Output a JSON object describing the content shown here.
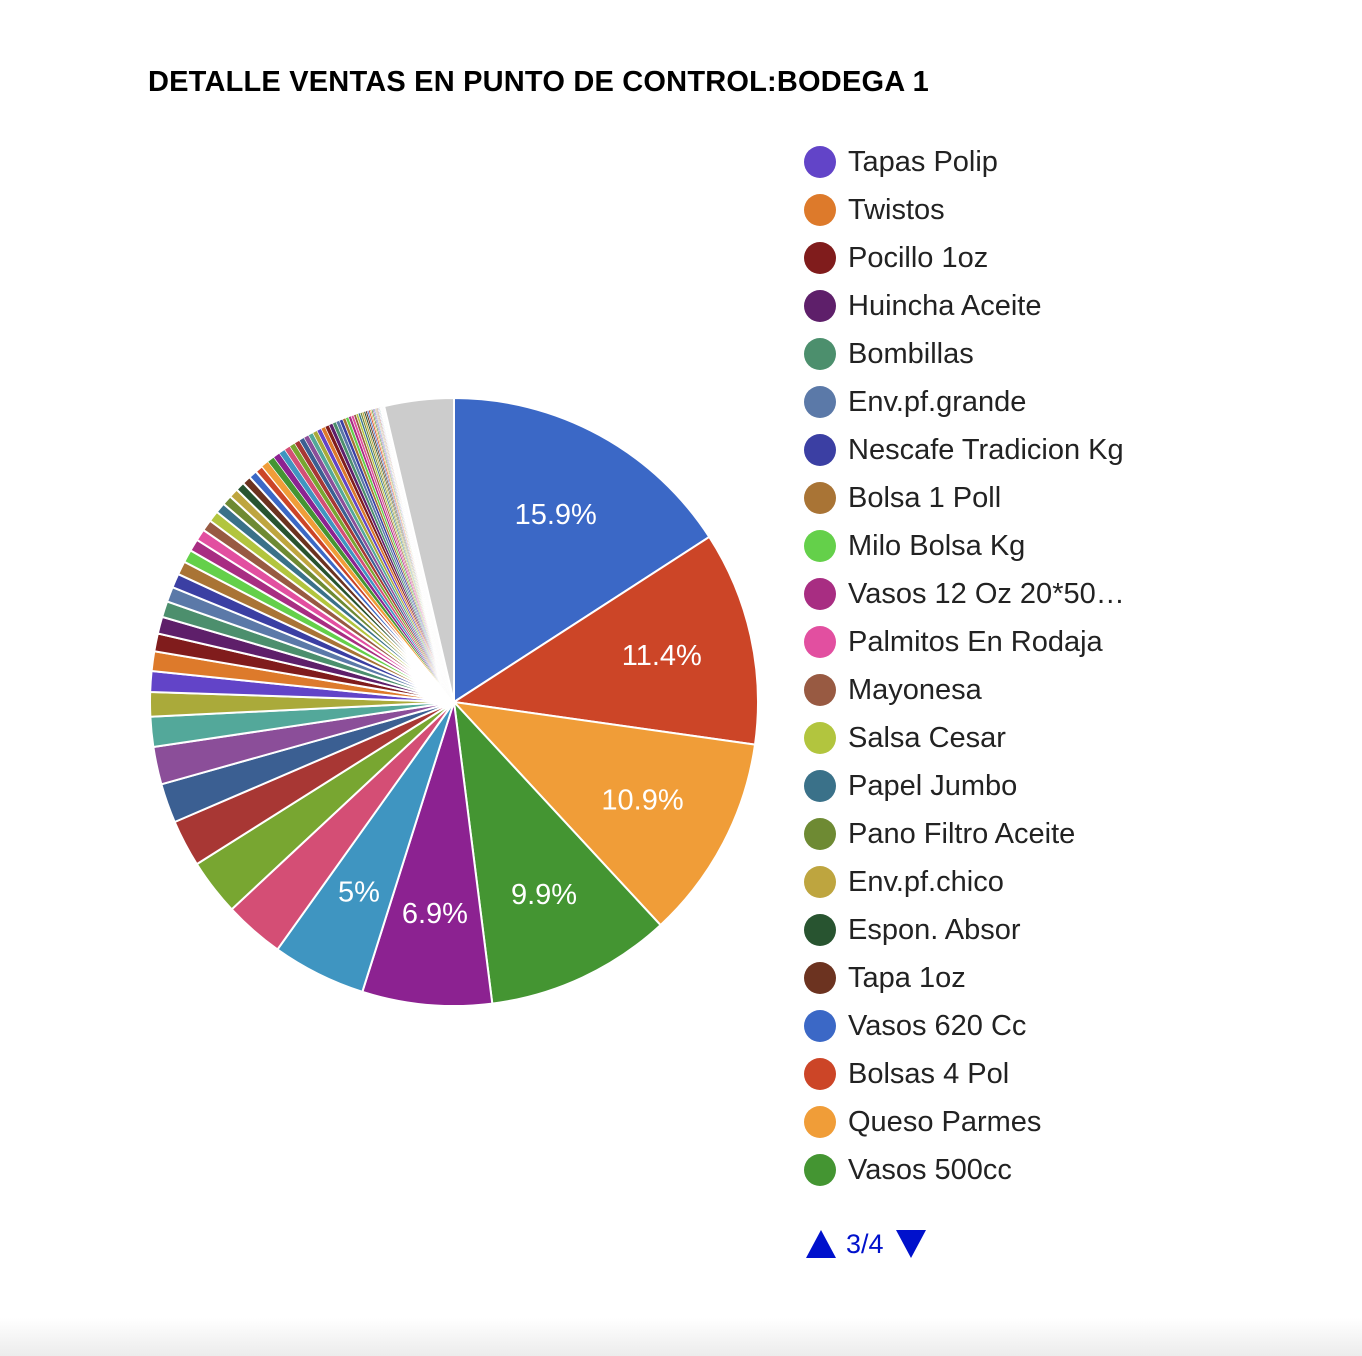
{
  "chart_data": {
    "type": "pie",
    "title": "DETALLE VENTAS EN PUNTO DE CONTROL:BODEGA 1",
    "legend_placement": "right",
    "slices": [
      {
        "name": "Vasos 620 Cc",
        "value": 15.9,
        "color": "#3b68c6",
        "label": "15.9%"
      },
      {
        "name": "Bolsas 4 Pol",
        "value": 11.4,
        "color": "#cc4527",
        "label": "11.4%"
      },
      {
        "name": "Queso Parmes",
        "value": 10.9,
        "color": "#f09d38",
        "label": "10.9%"
      },
      {
        "name": "Vasos 500cc",
        "value": 9.9,
        "color": "#449532",
        "label": "9.9%"
      },
      {
        "name": "",
        "value": 6.9,
        "color": "#8c2291",
        "label": "6.9%"
      },
      {
        "name": "",
        "value": 5.0,
        "color": "#3f95c1",
        "label": "5%"
      },
      {
        "name": "",
        "value": 3.2,
        "color": "#d44e75",
        "label": ""
      },
      {
        "name": "",
        "value": 3.0,
        "color": "#78a631",
        "label": ""
      },
      {
        "name": "",
        "value": 2.5,
        "color": "#a83734",
        "label": ""
      },
      {
        "name": "",
        "value": 2.1,
        "color": "#3b5f92",
        "label": ""
      },
      {
        "name": "",
        "value": 2.0,
        "color": "#8b4e99",
        "label": ""
      },
      {
        "name": "",
        "value": 1.6,
        "color": "#53a89a",
        "label": ""
      },
      {
        "name": "",
        "value": 1.3,
        "color": "#aaaa3a",
        "label": ""
      },
      {
        "name": "Tapas Polip",
        "value": 1.1,
        "color": "#6244c8",
        "label": ""
      },
      {
        "name": "Twistos",
        "value": 1.05,
        "color": "#dd7a2b",
        "label": ""
      },
      {
        "name": "Pocillo 1oz",
        "value": 0.95,
        "color": "#801c1c",
        "label": ""
      },
      {
        "name": "Huincha Aceite",
        "value": 0.9,
        "color": "#5e1f6a",
        "label": ""
      },
      {
        "name": "Bombillas",
        "value": 0.85,
        "color": "#4c8f6d",
        "label": ""
      },
      {
        "name": "Env.pf.grande",
        "value": 0.8,
        "color": "#5b79a8",
        "label": ""
      },
      {
        "name": "Nescafe Tradicion Kg",
        "value": 0.75,
        "color": "#3b3fa3",
        "label": ""
      },
      {
        "name": "Bolsa 1 Poll",
        "value": 0.72,
        "color": "#a97435",
        "label": ""
      },
      {
        "name": "Milo Bolsa Kg",
        "value": 0.68,
        "color": "#64d04a",
        "label": ""
      },
      {
        "name": "Vasos 12 Oz 20*50…",
        "value": 0.65,
        "color": "#a82d82",
        "label": ""
      },
      {
        "name": "Palmitos En Rodaja",
        "value": 0.62,
        "color": "#e24fa0",
        "label": ""
      },
      {
        "name": "Mayonesa",
        "value": 0.6,
        "color": "#985a42",
        "label": ""
      },
      {
        "name": "Salsa Cesar",
        "value": 0.58,
        "color": "#b2c53e",
        "label": ""
      },
      {
        "name": "Papel Jumbo",
        "value": 0.55,
        "color": "#3a7189",
        "label": ""
      },
      {
        "name": "Pano Filtro Aceite",
        "value": 0.52,
        "color": "#6e8a33",
        "label": ""
      },
      {
        "name": "Env.pf.chico",
        "value": 0.5,
        "color": "#bea53f",
        "label": ""
      },
      {
        "name": "Espon. Absor",
        "value": 0.48,
        "color": "#285430",
        "label": ""
      },
      {
        "name": "Tapa 1oz",
        "value": 0.46,
        "color": "#6c3320",
        "label": ""
      },
      {
        "name": "",
        "value": 0.44,
        "color": "#3b68c6",
        "label": ""
      },
      {
        "name": "",
        "value": 0.42,
        "color": "#cc4527",
        "label": ""
      },
      {
        "name": "",
        "value": 0.4,
        "color": "#f09d38",
        "label": ""
      },
      {
        "name": "",
        "value": 0.38,
        "color": "#449532",
        "label": ""
      },
      {
        "name": "",
        "value": 0.36,
        "color": "#8c2291",
        "label": ""
      },
      {
        "name": "",
        "value": 0.34,
        "color": "#3f95c1",
        "label": ""
      },
      {
        "name": "",
        "value": 0.32,
        "color": "#d44e75",
        "label": ""
      },
      {
        "name": "",
        "value": 0.3,
        "color": "#78a631",
        "label": ""
      },
      {
        "name": "",
        "value": 0.29,
        "color": "#a83734",
        "label": ""
      },
      {
        "name": "",
        "value": 0.28,
        "color": "#3b5f92",
        "label": ""
      },
      {
        "name": "",
        "value": 0.27,
        "color": "#8b4e99",
        "label": ""
      },
      {
        "name": "",
        "value": 0.26,
        "color": "#53a89a",
        "label": ""
      },
      {
        "name": "",
        "value": 0.25,
        "color": "#aaaa3a",
        "label": ""
      },
      {
        "name": "",
        "value": 0.24,
        "color": "#6244c8",
        "label": ""
      },
      {
        "name": "",
        "value": 0.23,
        "color": "#dd7a2b",
        "label": ""
      },
      {
        "name": "",
        "value": 0.22,
        "color": "#801c1c",
        "label": ""
      },
      {
        "name": "",
        "value": 0.21,
        "color": "#5e1f6a",
        "label": ""
      },
      {
        "name": "",
        "value": 0.2,
        "color": "#4c8f6d",
        "label": ""
      },
      {
        "name": "",
        "value": 0.19,
        "color": "#5b79a8",
        "label": ""
      },
      {
        "name": "",
        "value": 0.18,
        "color": "#3b3fa3",
        "label": ""
      },
      {
        "name": "",
        "value": 0.17,
        "color": "#a97435",
        "label": ""
      },
      {
        "name": "",
        "value": 0.16,
        "color": "#64d04a",
        "label": ""
      },
      {
        "name": "",
        "value": 0.15,
        "color": "#a82d82",
        "label": ""
      },
      {
        "name": "",
        "value": 0.14,
        "color": "#e24fa0",
        "label": ""
      },
      {
        "name": "",
        "value": 0.13,
        "color": "#985a42",
        "label": ""
      },
      {
        "name": "",
        "value": 0.12,
        "color": "#b2c53e",
        "label": ""
      },
      {
        "name": "",
        "value": 0.11,
        "color": "#3a7189",
        "label": ""
      },
      {
        "name": "",
        "value": 0.1,
        "color": "#6e8a33",
        "label": ""
      },
      {
        "name": "",
        "value": 0.1,
        "color": "#bea53f",
        "label": ""
      },
      {
        "name": "",
        "value": 0.09,
        "color": "#285430",
        "label": ""
      },
      {
        "name": "",
        "value": 0.09,
        "color": "#6c3320",
        "label": ""
      },
      {
        "name": "",
        "value": 0.08,
        "color": "#3b68c6",
        "label": ""
      },
      {
        "name": "",
        "value": 0.08,
        "color": "#cc4527",
        "label": ""
      },
      {
        "name": "",
        "value": 0.07,
        "color": "#f09d38",
        "label": ""
      },
      {
        "name": "",
        "value": 0.07,
        "color": "#449532",
        "label": ""
      },
      {
        "name": "",
        "value": 0.06,
        "color": "#8c2291",
        "label": ""
      },
      {
        "name": "",
        "value": 0.06,
        "color": "#3f95c1",
        "label": ""
      },
      {
        "name": "",
        "value": 0.05,
        "color": "#d44e75",
        "label": ""
      },
      {
        "name": "",
        "value": 0.05,
        "color": "#78a631",
        "label": ""
      },
      {
        "name": "",
        "value": 0.05,
        "color": "#a83734",
        "label": ""
      },
      {
        "name": "",
        "value": 0.04,
        "color": "#3b5f92",
        "label": ""
      },
      {
        "name": "",
        "value": 0.04,
        "color": "#8b4e99",
        "label": ""
      },
      {
        "name": "",
        "value": 0.04,
        "color": "#53a89a",
        "label": ""
      },
      {
        "name": "",
        "value": 0.03,
        "color": "#aaaa3a",
        "label": ""
      },
      {
        "name": "",
        "value": 0.03,
        "color": "#6244c8",
        "label": ""
      },
      {
        "name": "",
        "value": 0.03,
        "color": "#dd7a2b",
        "label": ""
      },
      {
        "name": "",
        "value": 0.03,
        "color": "#801c1c",
        "label": ""
      },
      {
        "name": "",
        "value": 0.02,
        "color": "#5e1f6a",
        "label": ""
      },
      {
        "name": "",
        "value": 0.02,
        "color": "#4c8f6d",
        "label": ""
      },
      {
        "name": "",
        "value": 0.02,
        "color": "#5b79a8",
        "label": ""
      },
      {
        "name": "",
        "value": 0.02,
        "color": "#3b3fa3",
        "label": ""
      },
      {
        "name": "",
        "value": 0.02,
        "color": "#a97435",
        "label": ""
      },
      {
        "name": "",
        "value": 0.02,
        "color": "#64d04a",
        "label": ""
      },
      {
        "name": "",
        "value": 3.7,
        "color": "#cccccc",
        "label": ""
      }
    ]
  },
  "legend": {
    "items": [
      {
        "label": "Tapas Polip",
        "color": "#6244c8"
      },
      {
        "label": "Twistos",
        "color": "#dd7a2b"
      },
      {
        "label": "Pocillo 1oz",
        "color": "#801c1c"
      },
      {
        "label": "Huincha Aceite",
        "color": "#5e1f6a"
      },
      {
        "label": "Bombillas",
        "color": "#4c8f6d"
      },
      {
        "label": "Env.pf.grande",
        "color": "#5b79a8"
      },
      {
        "label": "Nescafe Tradicion Kg",
        "color": "#3b3fa3"
      },
      {
        "label": "Bolsa 1 Poll",
        "color": "#a97435"
      },
      {
        "label": "Milo Bolsa Kg",
        "color": "#64d04a"
      },
      {
        "label": "Vasos 12 Oz 20*50…",
        "color": "#a82d82"
      },
      {
        "label": "Palmitos En Rodaja",
        "color": "#e24fa0"
      },
      {
        "label": "Mayonesa",
        "color": "#985a42"
      },
      {
        "label": "Salsa Cesar",
        "color": "#b2c53e"
      },
      {
        "label": "Papel Jumbo",
        "color": "#3a7189"
      },
      {
        "label": "Pano Filtro Aceite",
        "color": "#6e8a33"
      },
      {
        "label": "Env.pf.chico",
        "color": "#bea53f"
      },
      {
        "label": "Espon. Absor",
        "color": "#285430"
      },
      {
        "label": "Tapa 1oz",
        "color": "#6c3320"
      },
      {
        "label": "Vasos 620 Cc",
        "color": "#3b68c6"
      },
      {
        "label": "Bolsas 4 Pol",
        "color": "#cc4527"
      },
      {
        "label": "Queso Parmes",
        "color": "#f09d38"
      },
      {
        "label": "Vasos 500cc",
        "color": "#449532"
      }
    ],
    "pager": {
      "text": "3/4",
      "prev_icon": "triangle-up-icon",
      "next_icon": "triangle-down-icon",
      "color": "#0011cc"
    }
  }
}
